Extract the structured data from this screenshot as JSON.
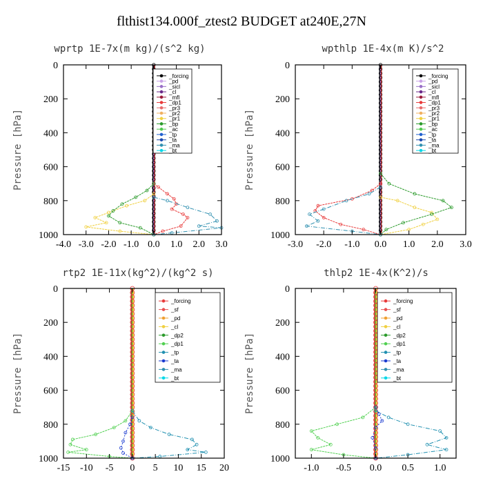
{
  "figure_title": "flthist134.000f_ztest2  BUDGET at240E,27N",
  "chart_data": [
    {
      "type": "line",
      "title": "wprtp  1E-7x(m kg)/(s^2 kg)",
      "ylabel": "Pressure [hPa]",
      "xlim": [
        -4,
        3
      ],
      "ylim": [
        1000,
        0
      ],
      "xticks": [
        "-4.0",
        "-3.0",
        "-2.0",
        "-1.0",
        "0.0",
        "1.0",
        "2.0",
        "3.0"
      ],
      "xtick_values": [
        -4,
        -3,
        -2,
        -1,
        0,
        1,
        2,
        3
      ],
      "yticks": [
        "0",
        "200",
        "400",
        "600",
        "800",
        "1000"
      ],
      "ytick_values": [
        0,
        200,
        400,
        600,
        800,
        1000
      ],
      "legend_position": "top-right",
      "series": [
        {
          "name": "_forcing",
          "color": "#000000",
          "values": []
        },
        {
          "name": "_pd",
          "color": "#c8a2e6",
          "values": []
        },
        {
          "name": "_sicl",
          "color": "#9a70c8",
          "values": []
        },
        {
          "name": "_cl",
          "color": "#6a2a8a",
          "values": []
        },
        {
          "name": "_mfl",
          "color": "#9b1b3a",
          "values": []
        },
        {
          "name": "_dp1",
          "color": "#e83a3a",
          "values": [
            [
              0.0,
              700
            ],
            [
              0.2,
              720
            ],
            [
              0.6,
              760
            ],
            [
              0.9,
              790
            ],
            [
              1.0,
              820
            ],
            [
              0.8,
              850
            ],
            [
              1.3,
              880
            ],
            [
              1.5,
              900
            ],
            [
              1.2,
              950
            ],
            [
              0.4,
              980
            ],
            [
              0.0,
              1000
            ]
          ]
        },
        {
          "name": "_pr3",
          "color": "#e86a6a",
          "values": []
        },
        {
          "name": "_pr2",
          "color": "#f0b060",
          "values": []
        },
        {
          "name": "_pr1",
          "color": "#f0d040",
          "values": [
            [
              0.0,
              760
            ],
            [
              -0.4,
              800
            ],
            [
              -1.2,
              830
            ],
            [
              -2.0,
              870
            ],
            [
              -2.6,
              900
            ],
            [
              -2.1,
              930
            ],
            [
              -3.0,
              955
            ],
            [
              -1.5,
              980
            ],
            [
              0.0,
              1000
            ]
          ]
        },
        {
          "name": "_bp",
          "color": "#2a9a2a",
          "values": [
            [
              0.0,
              700
            ],
            [
              -0.3,
              740
            ],
            [
              -0.8,
              780
            ],
            [
              -1.4,
              820
            ],
            [
              -1.8,
              860
            ],
            [
              -2.0,
              890
            ],
            [
              -1.5,
              930
            ],
            [
              -0.6,
              960
            ],
            [
              0.0,
              1000
            ]
          ]
        },
        {
          "name": "_ac",
          "color": "#50c850",
          "values": []
        },
        {
          "name": "_tp",
          "color": "#2060d0",
          "values": []
        },
        {
          "name": "_ta",
          "color": "#1a4ab0",
          "values": []
        },
        {
          "name": "_ma",
          "color": "#3090b0",
          "values": [
            [
              0.0,
              780
            ],
            [
              0.6,
              800
            ],
            [
              1.5,
              840
            ],
            [
              2.5,
              880
            ],
            [
              2.8,
              920
            ],
            [
              2.0,
              950
            ],
            [
              3.0,
              960
            ],
            [
              0.8,
              990
            ],
            [
              0.0,
              1000
            ]
          ]
        },
        {
          "name": "_bt",
          "color": "#00d8e8",
          "values": []
        }
      ]
    },
    {
      "type": "line",
      "title": "wpthlp  1E-4x(m K)/s^2",
      "ylabel": "Pressure [hPa]",
      "xlim": [
        -3,
        3
      ],
      "ylim": [
        1000,
        0
      ],
      "xticks": [
        "-3.0",
        "-2.0",
        "-1.0",
        "0.0",
        "1.0",
        "2.0",
        "3.0"
      ],
      "xtick_values": [
        -3,
        -2,
        -1,
        0,
        1,
        2,
        3
      ],
      "yticks": [
        "0",
        "200",
        "400",
        "600",
        "800",
        "1000"
      ],
      "ytick_values": [
        0,
        200,
        400,
        600,
        800,
        1000
      ],
      "legend_position": "top-right",
      "series": [
        {
          "name": "_forcing",
          "color": "#000000",
          "values": []
        },
        {
          "name": "_pd",
          "color": "#c8a2e6",
          "values": []
        },
        {
          "name": "_sicl",
          "color": "#9a70c8",
          "values": []
        },
        {
          "name": "_cl",
          "color": "#6a2a8a",
          "values": []
        },
        {
          "name": "_mfl",
          "color": "#9b1b3a",
          "values": []
        },
        {
          "name": "_dp1",
          "color": "#e83a3a",
          "values": [
            [
              0.0,
              700
            ],
            [
              -0.3,
              740
            ],
            [
              -1.0,
              790
            ],
            [
              -2.2,
              830
            ],
            [
              -2.3,
              860
            ],
            [
              -2.0,
              900
            ],
            [
              -1.4,
              940
            ],
            [
              -0.6,
              970
            ],
            [
              0.0,
              1000
            ]
          ]
        },
        {
          "name": "_pr3",
          "color": "#e86a6a",
          "values": []
        },
        {
          "name": "_pr2",
          "color": "#f0b060",
          "values": []
        },
        {
          "name": "_pr1",
          "color": "#f0d040",
          "values": [
            [
              0.0,
              780
            ],
            [
              0.6,
              800
            ],
            [
              1.2,
              840
            ],
            [
              1.8,
              870
            ],
            [
              2.0,
              910
            ],
            [
              1.5,
              940
            ],
            [
              1.0,
              970
            ],
            [
              0.0,
              1000
            ]
          ]
        },
        {
          "name": "_bp",
          "color": "#2a9a2a",
          "values": [
            [
              0.0,
              640
            ],
            [
              0.3,
              700
            ],
            [
              1.2,
              760
            ],
            [
              2.2,
              800
            ],
            [
              2.5,
              840
            ],
            [
              1.8,
              880
            ],
            [
              0.8,
              930
            ],
            [
              0.2,
              970
            ],
            [
              0.0,
              1000
            ]
          ]
        },
        {
          "name": "_ac",
          "color": "#50c850",
          "values": []
        },
        {
          "name": "_tp",
          "color": "#2060d0",
          "values": []
        },
        {
          "name": "_ta",
          "color": "#1a4ab0",
          "values": []
        },
        {
          "name": "_ma",
          "color": "#3090b0",
          "values": [
            [
              0.0,
              720
            ],
            [
              -0.4,
              760
            ],
            [
              -1.2,
              800
            ],
            [
              -2.0,
              850
            ],
            [
              -2.5,
              880
            ],
            [
              -2.2,
              920
            ],
            [
              -2.6,
              950
            ],
            [
              -1.0,
              980
            ],
            [
              0.0,
              1000
            ]
          ]
        },
        {
          "name": "_bt",
          "color": "#00d8e8",
          "values": []
        }
      ]
    },
    {
      "type": "line",
      "title": "rtp2  1E-11x(kg^2)/(kg^2 s)",
      "ylabel": "Pressure [hPa]",
      "xlim": [
        -15,
        20
      ],
      "ylim": [
        1000,
        0
      ],
      "xticks": [
        "-15",
        "-10",
        "-5",
        "0",
        "5",
        "10",
        "15",
        "20"
      ],
      "xtick_values": [
        -15,
        -10,
        -5,
        0,
        5,
        10,
        15,
        20
      ],
      "yticks": [
        "0",
        "200",
        "400",
        "600",
        "800",
        "1000"
      ],
      "ytick_values": [
        0,
        200,
        400,
        600,
        800,
        1000
      ],
      "legend_position": "top-right",
      "series": [
        {
          "name": "_forcing",
          "color": "#e83a3a",
          "values": []
        },
        {
          "name": "_sf",
          "color": "#e85050",
          "values": []
        },
        {
          "name": "_pd",
          "color": "#f0a030",
          "values": []
        },
        {
          "name": "_cl",
          "color": "#f0d040",
          "values": []
        },
        {
          "name": "_dp2",
          "color": "#2a9a2a",
          "values": []
        },
        {
          "name": "_dp1",
          "color": "#50d050",
          "values": [
            [
              0.0,
              720
            ],
            [
              -1.5,
              780
            ],
            [
              -4.0,
              820
            ],
            [
              -8.0,
              860
            ],
            [
              -13.0,
              890
            ],
            [
              -13.5,
              920
            ],
            [
              -10.0,
              950
            ],
            [
              -14.0,
              965
            ],
            [
              -5.0,
              990
            ],
            [
              0.0,
              1000
            ]
          ]
        },
        {
          "name": "_tp",
          "color": "#2090b0",
          "values": [
            [
              0.0,
              720
            ],
            [
              1.5,
              780
            ],
            [
              4.0,
              820
            ],
            [
              8.0,
              860
            ],
            [
              13.0,
              890
            ],
            [
              14.0,
              920
            ],
            [
              12.0,
              950
            ],
            [
              16.0,
              965
            ],
            [
              6.0,
              990
            ],
            [
              0.0,
              1000
            ]
          ]
        },
        {
          "name": "_ta",
          "color": "#1a3ad0",
          "values": [
            [
              0.0,
              760
            ],
            [
              -0.5,
              800
            ],
            [
              -1.5,
              850
            ],
            [
              -2.0,
              900
            ],
            [
              -2.5,
              940
            ],
            [
              -2.0,
              970
            ],
            [
              0.0,
              1000
            ]
          ]
        },
        {
          "name": "_ma",
          "color": "#3090b0",
          "values": []
        },
        {
          "name": "_bt",
          "color": "#00d8e8",
          "values": []
        }
      ]
    },
    {
      "type": "line",
      "title": "thlp2  1E-4x(K^2)/s",
      "ylabel": "Pressure [hPa]",
      "xlim": [
        -1.25,
        1.25
      ],
      "ylim": [
        1000,
        0
      ],
      "xticks": [
        "-1.0",
        "-0.5",
        "0.0",
        "0.5",
        "1.0"
      ],
      "xtick_values": [
        -1,
        -0.5,
        0,
        0.5,
        1
      ],
      "yticks": [
        "0",
        "200",
        "400",
        "600",
        "800",
        "1000"
      ],
      "ytick_values": [
        0,
        200,
        400,
        600,
        800,
        1000
      ],
      "legend_position": "top-right",
      "series": [
        {
          "name": "_forcing",
          "color": "#e83a3a",
          "values": []
        },
        {
          "name": "_sf",
          "color": "#e85050",
          "values": []
        },
        {
          "name": "_pd",
          "color": "#f0a030",
          "values": []
        },
        {
          "name": "_cl",
          "color": "#f0d040",
          "values": []
        },
        {
          "name": "_dp2",
          "color": "#2a9a2a",
          "values": []
        },
        {
          "name": "_dp1",
          "color": "#50d050",
          "values": [
            [
              0.0,
              700
            ],
            [
              -0.2,
              760
            ],
            [
              -0.6,
              800
            ],
            [
              -1.0,
              840
            ],
            [
              -0.9,
              880
            ],
            [
              -0.7,
              920
            ],
            [
              -1.0,
              950
            ],
            [
              -0.5,
              980
            ],
            [
              0.0,
              1000
            ]
          ]
        },
        {
          "name": "_tp",
          "color": "#2090b0",
          "values": [
            [
              0.0,
              720
            ],
            [
              0.2,
              760
            ],
            [
              0.5,
              800
            ],
            [
              1.0,
              840
            ],
            [
              1.1,
              880
            ],
            [
              0.8,
              920
            ],
            [
              1.1,
              950
            ],
            [
              0.5,
              980
            ],
            [
              0.0,
              1000
            ]
          ]
        },
        {
          "name": "_ta",
          "color": "#1a3ad0",
          "values": [
            [
              0.0,
              700
            ],
            [
              0.05,
              740
            ],
            [
              0.1,
              780
            ],
            [
              0.0,
              820
            ],
            [
              -0.05,
              880
            ],
            [
              0.0,
              940
            ],
            [
              0.0,
              1000
            ]
          ]
        },
        {
          "name": "_ma",
          "color": "#3090b0",
          "values": []
        },
        {
          "name": "_bt",
          "color": "#00d8e8",
          "values": []
        }
      ]
    }
  ]
}
